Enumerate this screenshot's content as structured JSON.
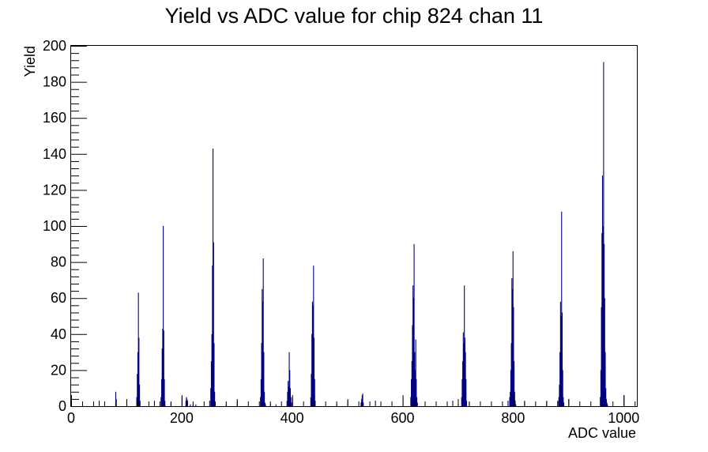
{
  "chart_data": {
    "type": "bar",
    "title": "Yield vs ADC value for chip 824 chan 11",
    "xlabel": "ADC value",
    "ylabel": "Yield",
    "xlim": [
      0,
      1024
    ],
    "ylim": [
      0,
      200
    ],
    "x_ticks": [
      0,
      200,
      400,
      600,
      800,
      1000
    ],
    "y_ticks": [
      0,
      20,
      40,
      60,
      80,
      100,
      120,
      140,
      160,
      180,
      200
    ],
    "bin_width": 1,
    "line_color": "#000080",
    "grid": false,
    "series": [
      {
        "x": [
          50,
          80,
          81,
          100,
          118,
          119,
          120,
          121,
          122,
          123,
          124,
          150,
          162,
          163,
          164,
          165,
          166,
          167,
          168,
          169,
          180,
          200,
          207,
          208,
          209,
          210,
          215,
          220,
          225,
          250,
          252,
          253,
          254,
          255,
          256,
          257,
          258,
          259,
          260,
          280,
          300,
          342,
          343,
          344,
          345,
          346,
          347,
          348,
          349,
          350,
          351,
          360,
          370,
          390,
          391,
          392,
          393,
          394,
          395,
          396,
          397,
          398,
          400,
          433,
          434,
          435,
          436,
          437,
          438,
          439,
          440,
          441,
          480,
          500,
          524,
          525,
          526,
          527,
          528,
          550,
          600,
          614,
          615,
          616,
          617,
          618,
          619,
          620,
          621,
          622,
          623,
          624,
          625,
          626,
          690,
          700,
          706,
          707,
          708,
          709,
          710,
          711,
          712,
          713,
          714,
          715,
          720,
          790,
          793,
          794,
          795,
          796,
          797,
          798,
          799,
          800,
          801,
          802,
          803,
          804,
          820,
          860,
          880,
          882,
          883,
          884,
          885,
          886,
          887,
          888,
          889,
          890,
          891,
          900,
          957,
          958,
          959,
          960,
          961,
          962,
          963,
          964,
          965,
          966,
          967,
          968,
          969,
          970,
          1000
        ],
        "values": [
          3,
          8,
          4,
          3,
          5,
          18,
          30,
          63,
          38,
          12,
          3,
          3,
          5,
          15,
          32,
          43,
          100,
          42,
          15,
          3,
          2,
          5,
          3,
          5,
          4,
          3,
          1,
          1,
          1,
          3,
          10,
          25,
          40,
          78,
          143,
          91,
          35,
          8,
          2,
          1,
          3,
          5,
          15,
          35,
          65,
          58,
          82,
          30,
          8,
          2,
          1,
          1,
          1,
          3,
          8,
          14,
          11,
          30,
          20,
          10,
          5,
          2,
          5,
          5,
          18,
          40,
          58,
          56,
          78,
          38,
          15,
          3,
          1,
          3,
          2,
          4,
          6,
          7,
          2,
          3,
          5,
          5,
          15,
          25,
          45,
          67,
          60,
          90,
          30,
          20,
          37,
          15,
          5,
          2,
          3,
          1,
          5,
          15,
          25,
          41,
          35,
          67,
          38,
          30,
          15,
          3,
          2,
          3,
          5,
          8,
          20,
          35,
          71,
          65,
          86,
          55,
          25,
          8,
          3,
          1,
          3,
          3,
          3,
          5,
          12,
          30,
          58,
          50,
          108,
          52,
          20,
          5,
          2,
          4,
          5,
          20,
          55,
          96,
          128,
          100,
          191,
          90,
          60,
          30,
          10,
          4,
          2,
          1,
          6
        ]
      }
    ]
  }
}
